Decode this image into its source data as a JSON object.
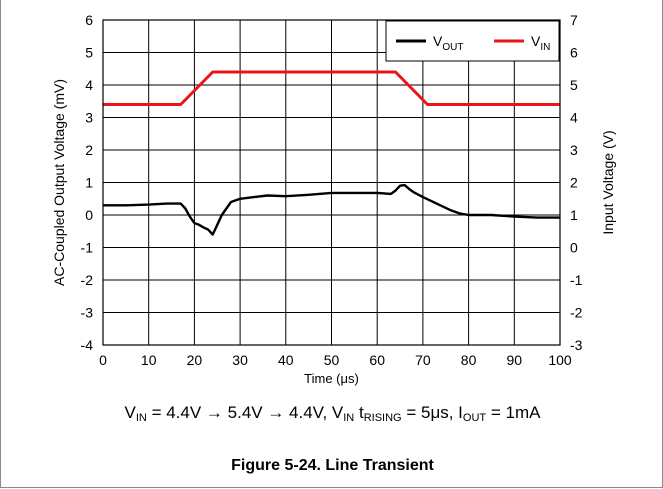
{
  "chart_data": {
    "type": "line",
    "xlabel": "Time (μs)",
    "ylabel_left": "AC-Coupled Output Voltage (mV)",
    "ylabel_right": "Input Voltage (V)",
    "xlim": [
      0,
      100
    ],
    "ylim_left": [
      -4,
      6
    ],
    "ylim_right": [
      -3,
      7
    ],
    "x_ticks": [
      "0",
      "10",
      "20",
      "30",
      "40",
      "50",
      "60",
      "70",
      "80",
      "90",
      "100"
    ],
    "y_left_ticks": [
      "-4",
      "-3",
      "-2",
      "-1",
      "0",
      "1",
      "2",
      "3",
      "4",
      "5",
      "6"
    ],
    "y_right_ticks": [
      "-3",
      "-2",
      "-1",
      "0",
      "1",
      "2",
      "3",
      "4",
      "5",
      "6",
      "7"
    ],
    "grid": true,
    "legend_position": "top-right",
    "series": [
      {
        "name": "VOUT",
        "axis": "left",
        "color": "#000000",
        "x": [
          0,
          5,
          10,
          14,
          17,
          18,
          19,
          20,
          21,
          22,
          23,
          24,
          25,
          26,
          27,
          28,
          30,
          33,
          36,
          40,
          45,
          50,
          55,
          60,
          63,
          64,
          65,
          66,
          67,
          68,
          70,
          73,
          76,
          78,
          80,
          85,
          90,
          95,
          100
        ],
        "y": [
          0.3,
          0.3,
          0.32,
          0.35,
          0.35,
          0.2,
          -0.05,
          -0.25,
          -0.3,
          -0.38,
          -0.45,
          -0.6,
          -0.3,
          0.0,
          0.2,
          0.4,
          0.5,
          0.55,
          0.6,
          0.58,
          0.62,
          0.68,
          0.68,
          0.68,
          0.65,
          0.75,
          0.9,
          0.92,
          0.8,
          0.7,
          0.55,
          0.35,
          0.15,
          0.05,
          0.0,
          0.0,
          -0.05,
          -0.08,
          -0.08
        ]
      },
      {
        "name": "VIN",
        "axis": "right",
        "color": "#e8161b",
        "x": [
          0,
          17,
          24,
          64,
          71,
          100
        ],
        "y": [
          4.4,
          4.4,
          5.4,
          5.4,
          4.4,
          4.4
        ]
      }
    ]
  },
  "caption": {
    "v1": "V",
    "s1": "IN",
    "t1": " = 4.4V → 5.4V → 4.4V, V",
    "s2": "IN",
    "t2": " t",
    "s3": "RISING",
    "t3": " = 5μs, I",
    "s4": "OUT",
    "t4": " = 1mA"
  },
  "figure_title": "Figure 5-24. Line Transient"
}
